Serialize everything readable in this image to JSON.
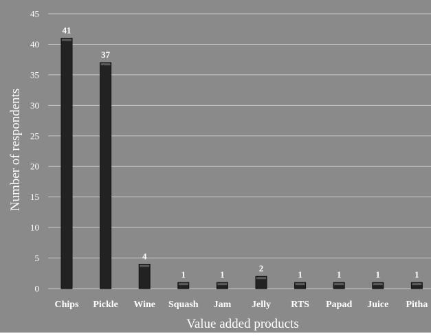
{
  "chart_data": {
    "type": "bar",
    "title": "",
    "xlabel": "Value added products",
    "ylabel": "Number of respondents",
    "categories": [
      "Chips",
      "Pickle",
      "Wine",
      "Squash",
      "Jam",
      "Jelly",
      "RTS",
      "Papad",
      "Juice",
      "Pitha"
    ],
    "values": [
      41,
      37,
      4,
      1,
      1,
      2,
      1,
      1,
      1,
      1
    ],
    "data_labels": [
      "41",
      "37",
      "4",
      "1",
      "1",
      "2",
      "1",
      "1",
      "1",
      "1"
    ],
    "ylim": [
      0,
      45
    ],
    "yticks": [
      0,
      5,
      10,
      15,
      20,
      25,
      30,
      35,
      40,
      45
    ],
    "ytick_labels": [
      "0",
      "5",
      "10",
      "15",
      "20",
      "25",
      "30",
      "35",
      "40",
      "45"
    ],
    "grid": true,
    "legend": "none",
    "colors": {
      "background": "#8a8a8a",
      "bar": "#222222",
      "bar_top": "#5a5a5a",
      "gridline": "#c8c8c8",
      "text": "#ffffff"
    }
  }
}
